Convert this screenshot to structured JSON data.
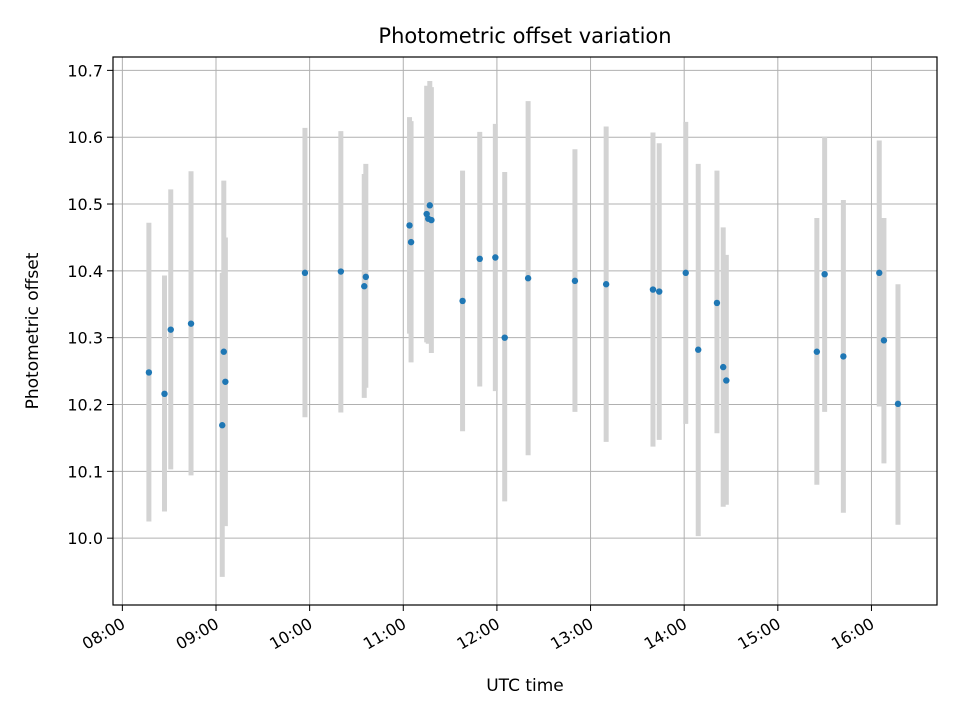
{
  "chart_data": {
    "type": "scatter",
    "title": "Photometric offset variation",
    "xlabel": "UTC time",
    "ylabel": "Photometric offset",
    "x_tick_labels": [
      "08:00",
      "09:00",
      "10:00",
      "11:00",
      "12:00",
      "13:00",
      "14:00",
      "15:00",
      "16:00"
    ],
    "y_tick_labels": [
      "10.0",
      "10.1",
      "10.2",
      "10.3",
      "10.4",
      "10.5",
      "10.6",
      "10.7"
    ],
    "xlim": [
      "07:54",
      "16:42"
    ],
    "ylim": [
      9.9,
      10.72
    ],
    "grid": true,
    "marker_color": "#1f77b4",
    "errorbar_color": "#d3d3d3",
    "points": [
      {
        "x": "08:17",
        "y": 10.248,
        "yerr": [
          10.025,
          10.472
        ]
      },
      {
        "x": "08:27",
        "y": 10.216,
        "yerr": [
          10.04,
          10.393
        ]
      },
      {
        "x": "08:31",
        "y": 10.312,
        "yerr": [
          10.103,
          10.522
        ]
      },
      {
        "x": "08:44",
        "y": 10.321,
        "yerr": [
          10.094,
          10.549
        ]
      },
      {
        "x": "09:04",
        "y": 10.169,
        "yerr": [
          9.942,
          10.397
        ]
      },
      {
        "x": "09:05",
        "y": 10.279,
        "yerr": [
          10.021,
          10.535
        ]
      },
      {
        "x": "09:06",
        "y": 10.234,
        "yerr": [
          10.018,
          10.45
        ]
      },
      {
        "x": "09:57",
        "y": 10.397,
        "yerr": [
          10.181,
          10.614
        ]
      },
      {
        "x": "10:20",
        "y": 10.399,
        "yerr": [
          10.188,
          10.609
        ]
      },
      {
        "x": "10:35",
        "y": 10.377,
        "yerr": [
          10.21,
          10.545
        ]
      },
      {
        "x": "10:36",
        "y": 10.391,
        "yerr": [
          10.225,
          10.56
        ]
      },
      {
        "x": "11:04",
        "y": 10.468,
        "yerr": [
          10.306,
          10.63
        ]
      },
      {
        "x": "11:05",
        "y": 10.443,
        "yerr": [
          10.263,
          10.624
        ]
      },
      {
        "x": "11:15",
        "y": 10.485,
        "yerr": [
          10.293,
          10.677
        ]
      },
      {
        "x": "11:16",
        "y": 10.478,
        "yerr": [
          10.291,
          10.664
        ]
      },
      {
        "x": "11:17",
        "y": 10.498,
        "yerr": [
          10.312,
          10.684
        ]
      },
      {
        "x": "11:18",
        "y": 10.476,
        "yerr": [
          10.277,
          10.675
        ]
      },
      {
        "x": "11:38",
        "y": 10.355,
        "yerr": [
          10.16,
          10.55
        ]
      },
      {
        "x": "11:49",
        "y": 10.418,
        "yerr": [
          10.227,
          10.608
        ]
      },
      {
        "x": "11:59",
        "y": 10.42,
        "yerr": [
          10.22,
          10.62
        ]
      },
      {
        "x": "12:05",
        "y": 10.3,
        "yerr": [
          10.055,
          10.548
        ]
      },
      {
        "x": "12:20",
        "y": 10.389,
        "yerr": [
          10.124,
          10.654
        ]
      },
      {
        "x": "12:50",
        "y": 10.385,
        "yerr": [
          10.189,
          10.582
        ]
      },
      {
        "x": "13:10",
        "y": 10.38,
        "yerr": [
          10.144,
          10.616
        ]
      },
      {
        "x": "13:40",
        "y": 10.372,
        "yerr": [
          10.137,
          10.607
        ]
      },
      {
        "x": "13:44",
        "y": 10.369,
        "yerr": [
          10.147,
          10.591
        ]
      },
      {
        "x": "14:01",
        "y": 10.397,
        "yerr": [
          10.171,
          10.623
        ]
      },
      {
        "x": "14:09",
        "y": 10.282,
        "yerr": [
          10.003,
          10.56
        ]
      },
      {
        "x": "14:21",
        "y": 10.352,
        "yerr": [
          10.157,
          10.55
        ]
      },
      {
        "x": "14:25",
        "y": 10.256,
        "yerr": [
          10.047,
          10.465
        ]
      },
      {
        "x": "14:27",
        "y": 10.236,
        "yerr": [
          10.05,
          10.424
        ]
      },
      {
        "x": "15:25",
        "y": 10.279,
        "yerr": [
          10.08,
          10.479
        ]
      },
      {
        "x": "15:30",
        "y": 10.395,
        "yerr": [
          10.189,
          10.601
        ]
      },
      {
        "x": "15:42",
        "y": 10.272,
        "yerr": [
          10.038,
          10.506
        ]
      },
      {
        "x": "16:05",
        "y": 10.397,
        "yerr": [
          10.197,
          10.595
        ]
      },
      {
        "x": "16:08",
        "y": 10.296,
        "yerr": [
          10.112,
          10.479
        ]
      },
      {
        "x": "16:17",
        "y": 10.201,
        "yerr": [
          10.02,
          10.38
        ]
      }
    ]
  }
}
